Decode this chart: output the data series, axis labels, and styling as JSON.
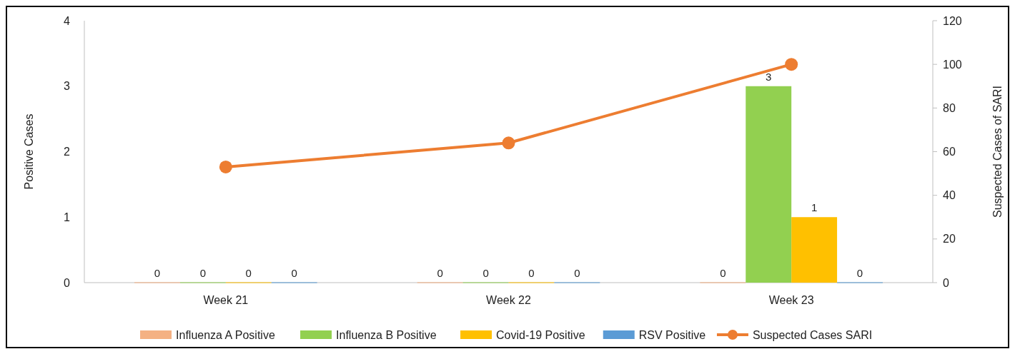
{
  "chart_data": {
    "type": "bar",
    "categories": [
      "Week 21",
      "Week 22",
      "Week 23"
    ],
    "ylabel": "Positive Cases",
    "y2label": "Suspected Cases of SARI",
    "ylim": [
      0,
      4
    ],
    "yticks": [
      0,
      1,
      2,
      3,
      4
    ],
    "y2lim": [
      0,
      120
    ],
    "y2ticks": [
      0,
      20,
      40,
      60,
      80,
      100,
      120
    ],
    "grid": false,
    "legend": "bottom",
    "series": [
      {
        "name": "Influenza A Positive",
        "color": "#f4b183",
        "values": [
          0,
          0,
          0
        ],
        "value_labels": [
          "0",
          "0",
          "0"
        ]
      },
      {
        "name": "Influenza B Positive",
        "color": "#92d050",
        "values": [
          0,
          0,
          3
        ],
        "value_labels": [
          "0",
          "0",
          "3"
        ]
      },
      {
        "name": "Covid-19 Positive",
        "color": "#ffc000",
        "values": [
          0,
          0,
          1
        ],
        "value_labels": [
          "0",
          "0",
          "1"
        ]
      },
      {
        "name": "RSV Positive",
        "color": "#5b9bd5",
        "values": [
          0,
          0,
          0
        ],
        "value_labels": [
          "0",
          "0",
          "0"
        ]
      },
      {
        "name": "Suspected Cases SARI",
        "type": "line",
        "axis": "y2",
        "color": "#ed7d31",
        "values": [
          53,
          64,
          100
        ],
        "marker": "circle"
      }
    ]
  }
}
